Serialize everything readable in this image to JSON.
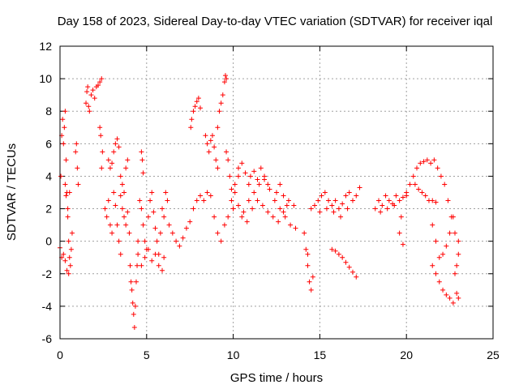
{
  "chart_data": {
    "type": "scatter",
    "title": "Day 158 of 2023, Sidereal Day-to-day VTEC variation (SDTVAR) for receiver iqal",
    "xlabel": "GPS time / hours",
    "ylabel": "SDTVAR / TECUs",
    "xlim": [
      0,
      25
    ],
    "ylim": [
      -6,
      12
    ],
    "xticks": [
      0,
      5,
      10,
      15,
      20,
      25
    ],
    "yticks": [
      -6,
      -4,
      -2,
      0,
      2,
      4,
      6,
      8,
      10,
      12
    ],
    "grid": true,
    "marker": "+",
    "color": "#ff0000",
    "series": [
      {
        "name": "SDTVAR",
        "points": [
          [
            0.0,
            -0.4
          ],
          [
            0.05,
            4.0
          ],
          [
            0.1,
            6.5
          ],
          [
            0.15,
            7.5
          ],
          [
            0.2,
            6.0
          ],
          [
            0.25,
            7.0
          ],
          [
            0.3,
            8.0
          ],
          [
            0.35,
            5.0
          ],
          [
            0.4,
            3.0
          ],
          [
            0.45,
            1.5
          ],
          [
            0.5,
            0.0
          ],
          [
            0.55,
            -1.0
          ],
          [
            0.6,
            -1.5
          ],
          [
            0.65,
            -0.5
          ],
          [
            0.7,
            0.5
          ],
          [
            0.1,
            -1.0
          ],
          [
            0.2,
            -0.8
          ],
          [
            0.3,
            -1.2
          ],
          [
            0.4,
            -1.8
          ],
          [
            0.5,
            -2.0
          ],
          [
            0.3,
            3.5
          ],
          [
            0.35,
            2.8
          ],
          [
            0.45,
            2.0
          ],
          [
            0.55,
            3.0
          ],
          [
            0.9,
            5.5
          ],
          [
            1.0,
            4.5
          ],
          [
            1.05,
            3.5
          ],
          [
            0.95,
            6.0
          ],
          [
            1.5,
            8.5
          ],
          [
            1.6,
            9.5
          ],
          [
            1.7,
            8.0
          ],
          [
            1.8,
            9.0
          ],
          [
            1.9,
            9.3
          ],
          [
            2.0,
            8.8
          ],
          [
            2.1,
            9.5
          ],
          [
            2.2,
            9.6
          ],
          [
            2.3,
            9.8
          ],
          [
            2.4,
            10.0
          ],
          [
            1.55,
            9.2
          ],
          [
            1.65,
            8.3
          ],
          [
            2.3,
            7.0
          ],
          [
            2.35,
            6.5
          ],
          [
            2.45,
            5.5
          ],
          [
            2.4,
            4.5
          ],
          [
            2.6,
            2.0
          ],
          [
            2.7,
            1.5
          ],
          [
            2.8,
            2.5
          ],
          [
            2.9,
            1.0
          ],
          [
            3.0,
            0.5
          ],
          [
            3.1,
            3.0
          ],
          [
            3.2,
            2.2
          ],
          [
            3.3,
            1.0
          ],
          [
            3.4,
            0.0
          ],
          [
            3.5,
            -0.8
          ],
          [
            2.8,
            5.0
          ],
          [
            2.9,
            4.5
          ],
          [
            3.0,
            4.8
          ],
          [
            3.1,
            5.5
          ],
          [
            3.2,
            6.0
          ],
          [
            3.3,
            6.3
          ],
          [
            3.4,
            5.8
          ],
          [
            3.5,
            4.0
          ],
          [
            3.6,
            3.5
          ],
          [
            3.7,
            3.0
          ],
          [
            3.8,
            4.5
          ],
          [
            3.9,
            5.0
          ],
          [
            3.5,
            2.8
          ],
          [
            3.6,
            2.0
          ],
          [
            3.7,
            1.5
          ],
          [
            3.8,
            1.0
          ],
          [
            3.9,
            1.8
          ],
          [
            4.0,
            0.5
          ],
          [
            4.05,
            -1.5
          ],
          [
            4.1,
            -2.5
          ],
          [
            4.15,
            -3.0
          ],
          [
            4.2,
            -3.8
          ],
          [
            4.25,
            -4.5
          ],
          [
            4.3,
            -5.3
          ],
          [
            4.35,
            -4.0
          ],
          [
            4.4,
            -2.5
          ],
          [
            4.45,
            -1.5
          ],
          [
            4.5,
            0.0
          ],
          [
            4.6,
            2.5
          ],
          [
            4.7,
            2.0
          ],
          [
            4.8,
            1.0
          ],
          [
            4.9,
            0.0
          ],
          [
            5.0,
            -0.5
          ],
          [
            5.1,
            1.5
          ],
          [
            5.2,
            2.5
          ],
          [
            5.3,
            3.0
          ],
          [
            5.4,
            1.8
          ],
          [
            5.5,
            0.8
          ],
          [
            5.6,
            0.0
          ],
          [
            5.7,
            -0.8
          ],
          [
            5.8,
            0.5
          ],
          [
            5.9,
            2.0
          ],
          [
            6.0,
            1.5
          ],
          [
            6.1,
            3.0
          ],
          [
            6.2,
            2.5
          ],
          [
            4.7,
            5.5
          ],
          [
            4.75,
            5.0
          ],
          [
            4.8,
            4.2
          ],
          [
            4.5,
            -0.8
          ],
          [
            4.7,
            -1.5
          ],
          [
            4.9,
            -1.0
          ],
          [
            5.1,
            -0.5
          ],
          [
            5.3,
            -1.2
          ],
          [
            5.5,
            -0.8
          ],
          [
            5.7,
            -1.5
          ],
          [
            5.9,
            -1.8
          ],
          [
            6.0,
            -1.0
          ],
          [
            6.3,
            1.0
          ],
          [
            6.5,
            0.5
          ],
          [
            6.7,
            0.0
          ],
          [
            6.9,
            -0.3
          ],
          [
            7.1,
            0.2
          ],
          [
            7.3,
            0.8
          ],
          [
            7.5,
            1.2
          ],
          [
            7.7,
            2.0
          ],
          [
            7.9,
            2.5
          ],
          [
            8.1,
            2.8
          ],
          [
            7.6,
            7.5
          ],
          [
            7.7,
            8.0
          ],
          [
            7.8,
            8.3
          ],
          [
            7.9,
            8.6
          ],
          [
            8.0,
            8.8
          ],
          [
            8.1,
            8.2
          ],
          [
            7.55,
            7.0
          ],
          [
            8.4,
            6.5
          ],
          [
            8.5,
            6.0
          ],
          [
            8.6,
            5.5
          ],
          [
            8.7,
            6.2
          ],
          [
            8.8,
            6.5
          ],
          [
            8.9,
            5.8
          ],
          [
            9.0,
            5.0
          ],
          [
            9.1,
            4.5
          ],
          [
            9.1,
            7.0
          ],
          [
            9.2,
            8.0
          ],
          [
            9.3,
            8.5
          ],
          [
            9.4,
            9.0
          ],
          [
            9.5,
            9.8
          ],
          [
            9.55,
            10.2
          ],
          [
            9.6,
            10.0
          ],
          [
            8.3,
            2.5
          ],
          [
            8.5,
            3.0
          ],
          [
            8.7,
            2.8
          ],
          [
            8.9,
            1.5
          ],
          [
            9.1,
            0.5
          ],
          [
            9.3,
            0.0
          ],
          [
            9.5,
            1.0
          ],
          [
            9.7,
            1.5
          ],
          [
            9.9,
            2.5
          ],
          [
            10.1,
            3.5
          ],
          [
            10.3,
            4.5
          ],
          [
            9.6,
            5.5
          ],
          [
            9.7,
            5.0
          ],
          [
            9.8,
            4.0
          ],
          [
            9.9,
            3.2
          ],
          [
            10.0,
            2.0
          ],
          [
            10.1,
            3.0
          ],
          [
            10.3,
            4.0
          ],
          [
            10.5,
            4.8
          ],
          [
            10.7,
            4.2
          ],
          [
            10.9,
            3.5
          ],
          [
            10.0,
            2.0
          ],
          [
            10.3,
            2.2
          ],
          [
            10.6,
            1.8
          ],
          [
            10.9,
            2.5
          ],
          [
            11.2,
            3.0
          ],
          [
            11.5,
            3.5
          ],
          [
            11.8,
            3.8
          ],
          [
            12.1,
            3.2
          ],
          [
            12.4,
            2.5
          ],
          [
            12.7,
            2.0
          ],
          [
            13.0,
            1.5
          ],
          [
            13.3,
            1.0
          ],
          [
            13.6,
            0.8
          ],
          [
            10.5,
            1.5
          ],
          [
            10.8,
            1.2
          ],
          [
            11.1,
            2.0
          ],
          [
            11.4,
            2.5
          ],
          [
            11.7,
            2.2
          ],
          [
            12.0,
            1.8
          ],
          [
            12.3,
            1.5
          ],
          [
            12.6,
            1.2
          ],
          [
            12.9,
            1.8
          ],
          [
            13.2,
            2.5
          ],
          [
            13.5,
            2.2
          ],
          [
            11.0,
            4.0
          ],
          [
            11.2,
            4.3
          ],
          [
            11.4,
            3.8
          ],
          [
            11.6,
            4.5
          ],
          [
            11.8,
            4.0
          ],
          [
            12.0,
            3.5
          ],
          [
            12.5,
            3.0
          ],
          [
            12.7,
            3.5
          ],
          [
            12.9,
            2.8
          ],
          [
            13.1,
            2.2
          ],
          [
            14.1,
            0.5
          ],
          [
            14.2,
            -0.5
          ],
          [
            14.3,
            -1.5
          ],
          [
            14.4,
            -2.5
          ],
          [
            14.5,
            -3.0
          ],
          [
            14.6,
            -2.2
          ],
          [
            14.3,
            -0.8
          ],
          [
            14.5,
            2.0
          ],
          [
            14.7,
            2.2
          ],
          [
            14.9,
            2.5
          ],
          [
            15.1,
            2.8
          ],
          [
            15.3,
            3.0
          ],
          [
            15.5,
            2.5
          ],
          [
            15.7,
            2.2
          ],
          [
            15.9,
            2.5
          ],
          [
            16.1,
            2.0
          ],
          [
            16.3,
            2.3
          ],
          [
            16.5,
            2.8
          ],
          [
            16.7,
            3.0
          ],
          [
            16.9,
            2.5
          ],
          [
            17.1,
            2.8
          ],
          [
            17.3,
            3.3
          ],
          [
            15.0,
            1.8
          ],
          [
            15.4,
            2.0
          ],
          [
            15.8,
            1.8
          ],
          [
            16.2,
            1.5
          ],
          [
            16.6,
            2.0
          ],
          [
            15.7,
            -0.5
          ],
          [
            15.9,
            -0.6
          ],
          [
            16.1,
            -0.8
          ],
          [
            16.3,
            -1.0
          ],
          [
            16.5,
            -1.3
          ],
          [
            16.7,
            -1.6
          ],
          [
            16.9,
            -1.9
          ],
          [
            17.1,
            -2.2
          ],
          [
            18.2,
            2.0
          ],
          [
            18.4,
            2.5
          ],
          [
            18.6,
            2.2
          ],
          [
            18.8,
            2.8
          ],
          [
            19.0,
            2.5
          ],
          [
            19.2,
            2.3
          ],
          [
            19.4,
            2.8
          ],
          [
            19.6,
            2.5
          ],
          [
            19.8,
            2.7
          ],
          [
            20.0,
            2.8
          ],
          [
            18.5,
            1.8
          ],
          [
            18.9,
            2.0
          ],
          [
            19.3,
            2.2
          ],
          [
            19.6,
            0.5
          ],
          [
            19.8,
            -0.2
          ],
          [
            19.7,
            1.5
          ],
          [
            20.0,
            3.0
          ],
          [
            20.2,
            3.5
          ],
          [
            20.4,
            4.0
          ],
          [
            20.6,
            4.5
          ],
          [
            20.8,
            4.8
          ],
          [
            21.0,
            4.9
          ],
          [
            21.2,
            5.0
          ],
          [
            21.4,
            4.8
          ],
          [
            21.6,
            5.0
          ],
          [
            21.8,
            4.5
          ],
          [
            22.0,
            4.0
          ],
          [
            22.2,
            3.5
          ],
          [
            22.4,
            2.5
          ],
          [
            22.6,
            1.5
          ],
          [
            22.8,
            0.5
          ],
          [
            23.0,
            0.0
          ],
          [
            20.5,
            3.5
          ],
          [
            20.7,
            3.2
          ],
          [
            20.9,
            3.0
          ],
          [
            21.1,
            2.8
          ],
          [
            21.3,
            2.5
          ],
          [
            21.5,
            2.5
          ],
          [
            21.7,
            2.4
          ],
          [
            21.5,
            1.0
          ],
          [
            21.7,
            0.0
          ],
          [
            21.9,
            -1.0
          ],
          [
            22.1,
            -0.8
          ],
          [
            22.3,
            -0.3
          ],
          [
            22.5,
            0.5
          ],
          [
            22.7,
            1.5
          ],
          [
            21.5,
            -1.5
          ],
          [
            21.7,
            -2.0
          ],
          [
            21.9,
            -2.5
          ],
          [
            22.1,
            -3.0
          ],
          [
            22.3,
            -3.3
          ],
          [
            22.5,
            -3.5
          ],
          [
            22.7,
            -3.8
          ],
          [
            22.9,
            -3.2
          ],
          [
            23.0,
            -3.5
          ],
          [
            22.8,
            -2.0
          ],
          [
            22.9,
            -1.5
          ],
          [
            23.0,
            -0.8
          ]
        ]
      }
    ]
  }
}
